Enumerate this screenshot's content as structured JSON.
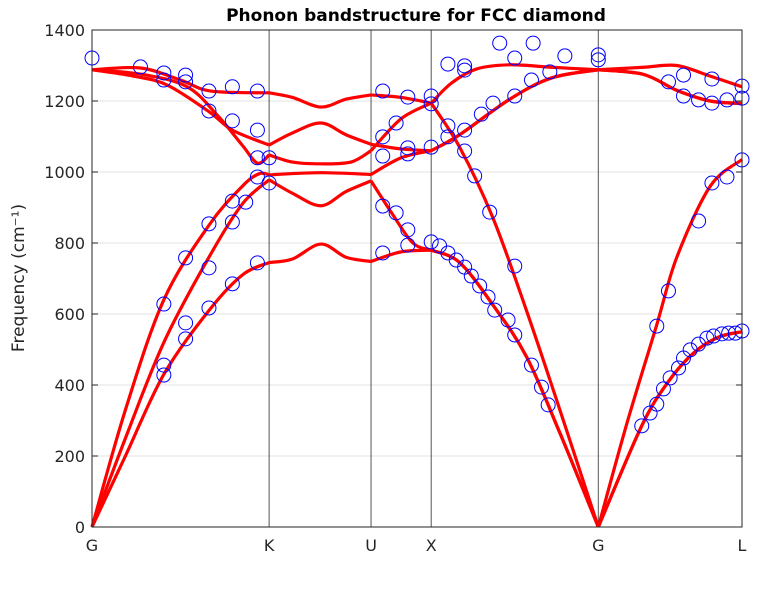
{
  "chart_data": {
    "type": "line",
    "title": "Phonon bandstructure for FCC diamond",
    "xlabel": "",
    "ylabel": "Frequency (cm⁻¹)",
    "ylim": [
      0,
      1400
    ],
    "xlim": [
      0,
      3.89
    ],
    "yticks": [
      0,
      200,
      400,
      600,
      800,
      1000,
      1200,
      1400
    ],
    "xticks": [
      {
        "label": "G",
        "x": 0
      },
      {
        "label": "K",
        "x": 1.06
      },
      {
        "label": "U",
        "x": 1.67
      },
      {
        "label": "X",
        "x": 2.03
      },
      {
        "label": "G",
        "x": 3.03
      },
      {
        "label": "L",
        "x": 3.89
      }
    ],
    "grid": "horizontal",
    "line_color": "#ff0000",
    "marker_color": "#0000ff",
    "bands": [
      [
        [
          0,
          0
        ],
        [
          0.2,
          200
        ],
        [
          0.43,
          430
        ],
        [
          0.7,
          610
        ],
        [
          0.9,
          710
        ],
        [
          1.06,
          745
        ],
        [
          1.2,
          755
        ],
        [
          1.37,
          797
        ],
        [
          1.52,
          760
        ],
        [
          1.67,
          748
        ],
        [
          1.85,
          775
        ],
        [
          2.03,
          780
        ],
        [
          2.2,
          745
        ],
        [
          2.4,
          625
        ],
        [
          2.6,
          480
        ],
        [
          2.8,
          265
        ],
        [
          3.03,
          0
        ],
        [
          3.29,
          285
        ],
        [
          3.45,
          410
        ],
        [
          3.6,
          490
        ],
        [
          3.75,
          535
        ],
        [
          3.89,
          550
        ]
      ],
      [
        [
          0,
          0
        ],
        [
          0.2,
          250
        ],
        [
          0.43,
          520
        ],
        [
          0.7,
          760
        ],
        [
          0.9,
          910
        ],
        [
          1.06,
          978
        ],
        [
          1.2,
          940
        ],
        [
          1.37,
          905
        ],
        [
          1.52,
          945
        ],
        [
          1.67,
          975
        ],
        [
          1.8,
          880
        ],
        [
          1.92,
          800
        ],
        [
          2.03,
          780
        ],
        [
          2.2,
          745
        ],
        [
          2.4,
          625
        ],
        [
          2.6,
          480
        ],
        [
          2.8,
          265
        ],
        [
          3.03,
          0
        ],
        [
          3.29,
          285
        ],
        [
          3.45,
          410
        ],
        [
          3.6,
          490
        ],
        [
          3.75,
          535
        ],
        [
          3.89,
          550
        ]
      ],
      [
        [
          0,
          0
        ],
        [
          0.2,
          330
        ],
        [
          0.43,
          640
        ],
        [
          0.7,
          850
        ],
        [
          0.9,
          960
        ],
        [
          1.0,
          995
        ],
        [
          1.06,
          992
        ],
        [
          1.37,
          998
        ],
        [
          1.67,
          993
        ],
        [
          1.85,
          1040
        ],
        [
          2.03,
          1060
        ],
        [
          2.2,
          1105
        ],
        [
          2.5,
          1205
        ],
        [
          2.75,
          1265
        ],
        [
          3.03,
          1288
        ],
        [
          3.3,
          1275
        ],
        [
          3.5,
          1230
        ],
        [
          3.7,
          1200
        ],
        [
          3.89,
          1193
        ]
      ],
      [
        [
          0,
          1288
        ],
        [
          0.3,
          1275
        ],
        [
          0.57,
          1240
        ],
        [
          0.75,
          1160
        ],
        [
          0.9,
          1075
        ],
        [
          0.99,
          1025
        ],
        [
          1.06,
          1048
        ],
        [
          1.2,
          1028
        ],
        [
          1.37,
          1023
        ],
        [
          1.55,
          1028
        ],
        [
          1.67,
          1060
        ],
        [
          1.85,
          1150
        ],
        [
          2.03,
          1194
        ],
        [
          2.2,
          1070
        ],
        [
          2.4,
          870
        ],
        [
          2.6,
          610
        ],
        [
          2.8,
          330
        ],
        [
          3.03,
          0
        ],
        [
          3.2,
          290
        ],
        [
          3.38,
          570
        ],
        [
          3.5,
          760
        ],
        [
          3.7,
          960
        ],
        [
          3.89,
          1035
        ]
      ],
      [
        [
          0,
          1288
        ],
        [
          0.25,
          1270
        ],
        [
          0.45,
          1245
        ],
        [
          0.7,
          1170
        ],
        [
          0.84,
          1118
        ],
        [
          1.06,
          1076
        ],
        [
          1.2,
          1110
        ],
        [
          1.37,
          1138
        ],
        [
          1.52,
          1105
        ],
        [
          1.67,
          1078
        ],
        [
          1.85,
          1065
        ],
        [
          2.03,
          1060
        ],
        [
          2.2,
          1105
        ],
        [
          2.5,
          1205
        ],
        [
          2.75,
          1265
        ],
        [
          3.03,
          1288
        ],
        [
          3.3,
          1275
        ],
        [
          3.5,
          1230
        ],
        [
          3.7,
          1200
        ],
        [
          3.89,
          1193
        ]
      ],
      [
        [
          0,
          1288
        ],
        [
          0.29,
          1293
        ],
        [
          0.53,
          1259
        ],
        [
          0.71,
          1228
        ],
        [
          1.06,
          1223
        ],
        [
          1.2,
          1210
        ],
        [
          1.37,
          1183
        ],
        [
          1.52,
          1205
        ],
        [
          1.67,
          1217
        ],
        [
          1.85,
          1210
        ],
        [
          2.03,
          1194
        ],
        [
          2.15,
          1250
        ],
        [
          2.3,
          1290
        ],
        [
          2.5,
          1302
        ],
        [
          2.75,
          1295
        ],
        [
          3.03,
          1288
        ],
        [
          3.3,
          1295
        ],
        [
          3.5,
          1300
        ],
        [
          3.7,
          1270
        ],
        [
          3.89,
          1240
        ]
      ]
    ],
    "points": [
      [
        0,
        1321
      ],
      [
        0.29,
        1296
      ],
      [
        0.43,
        1279
      ],
      [
        0.43,
        1259
      ],
      [
        0.56,
        1273
      ],
      [
        0.56,
        1254
      ],
      [
        0.7,
        1172
      ],
      [
        0.7,
        1228
      ],
      [
        0.84,
        1240
      ],
      [
        0.84,
        1144
      ],
      [
        0.99,
        1118
      ],
      [
        0.99,
        1228
      ],
      [
        0.99,
        1040
      ],
      [
        1.06,
        1040
      ],
      [
        0.99,
        986
      ],
      [
        1.06,
        969
      ],
      [
        0.84,
        918
      ],
      [
        0.92,
        915
      ],
      [
        0.7,
        854
      ],
      [
        0.84,
        859
      ],
      [
        0.56,
        758
      ],
      [
        0.7,
        730
      ],
      [
        0.43,
        628
      ],
      [
        0.56,
        575
      ],
      [
        0.56,
        530
      ],
      [
        0.43,
        456
      ],
      [
        0.43,
        428
      ],
      [
        0.7,
        617
      ],
      [
        0.84,
        685
      ],
      [
        0.99,
        744
      ],
      [
        1.74,
        1228
      ],
      [
        1.74,
        1099
      ],
      [
        1.82,
        1138
      ],
      [
        1.74,
        1045
      ],
      [
        1.89,
        1068
      ],
      [
        1.89,
        1051
      ],
      [
        1.89,
        1211
      ],
      [
        2.03,
        1214
      ],
      [
        2.03,
        1192
      ],
      [
        2.03,
        1070
      ],
      [
        1.74,
        904
      ],
      [
        1.82,
        885
      ],
      [
        1.89,
        837
      ],
      [
        1.89,
        794
      ],
      [
        1.74,
        772
      ],
      [
        2.03,
        803
      ],
      [
        2.08,
        792
      ],
      [
        2.13,
        772
      ],
      [
        2.18,
        752
      ],
      [
        2.23,
        732
      ],
      [
        2.27,
        707
      ],
      [
        2.32,
        679
      ],
      [
        2.37,
        648
      ],
      [
        2.41,
        611
      ],
      [
        2.49,
        583
      ],
      [
        2.53,
        541
      ],
      [
        2.63,
        456
      ],
      [
        2.69,
        394
      ],
      [
        2.73,
        344
      ],
      [
        2.53,
        735
      ],
      [
        2.38,
        887
      ],
      [
        2.29,
        989
      ],
      [
        2.23,
        1059
      ],
      [
        2.13,
        1099
      ],
      [
        2.13,
        1130
      ],
      [
        2.23,
        1118
      ],
      [
        2.33,
        1163
      ],
      [
        2.4,
        1194
      ],
      [
        2.53,
        1214
      ],
      [
        2.63,
        1259
      ],
      [
        2.74,
        1282
      ],
      [
        2.13,
        1304
      ],
      [
        2.23,
        1299
      ],
      [
        2.23,
        1287
      ],
      [
        2.44,
        1363
      ],
      [
        2.53,
        1321
      ],
      [
        2.64,
        1363
      ],
      [
        2.83,
        1327
      ],
      [
        3.03,
        1330
      ],
      [
        3.03,
        1316
      ],
      [
        3.45,
        1254
      ],
      [
        3.54,
        1214
      ],
      [
        3.54,
        1273
      ],
      [
        3.63,
        1203
      ],
      [
        3.71,
        1194
      ],
      [
        3.71,
        1262
      ],
      [
        3.8,
        1203
      ],
      [
        3.89,
        1208
      ],
      [
        3.89,
        1242
      ],
      [
        3.89,
        1034
      ],
      [
        3.8,
        986
      ],
      [
        3.71,
        969
      ],
      [
        3.63,
        862
      ],
      [
        3.45,
        665
      ],
      [
        3.38,
        566
      ],
      [
        3.29,
        285
      ],
      [
        3.34,
        321
      ],
      [
        3.38,
        346
      ],
      [
        3.42,
        389
      ],
      [
        3.46,
        420
      ],
      [
        3.51,
        448
      ],
      [
        3.54,
        476
      ],
      [
        3.58,
        499
      ],
      [
        3.63,
        515
      ],
      [
        3.68,
        532
      ],
      [
        3.72,
        538
      ],
      [
        3.77,
        544
      ],
      [
        3.81,
        546
      ],
      [
        3.85,
        546
      ],
      [
        3.89,
        552
      ]
    ]
  }
}
